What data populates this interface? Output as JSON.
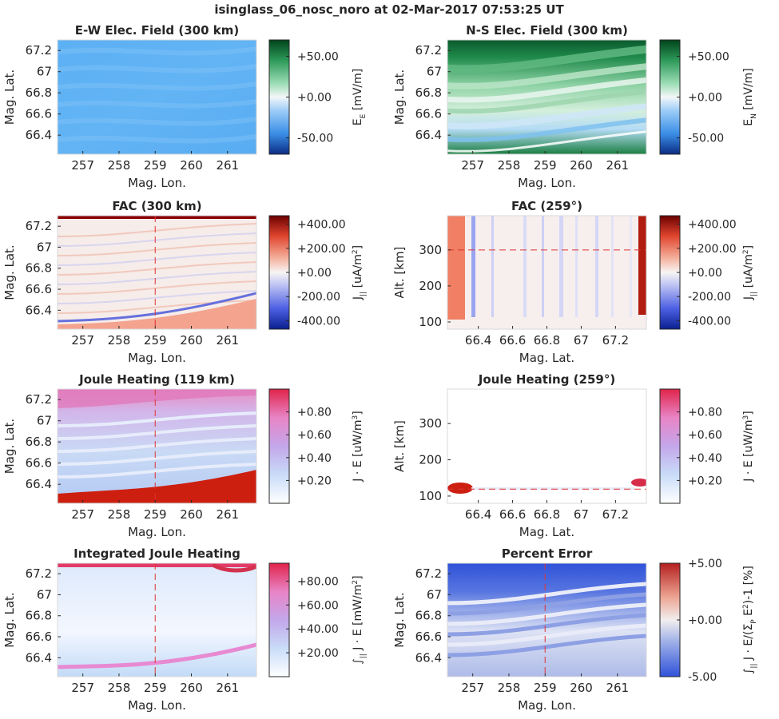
{
  "figure_title": "isinglass_06_nosc_noro at 02-Mar-2017 07:53:25 UT",
  "chart_data": [
    {
      "type": "heatmap",
      "title": "E-W Elec. Field (300 km)",
      "xlabel": "Mag. Lon.",
      "ylabel": "Mag. Lat.",
      "xlim": [
        256.3,
        261.8
      ],
      "ylim": [
        66.22,
        67.3
      ],
      "xticks": [
        "257",
        "258",
        "259",
        "260",
        "261"
      ],
      "xtick_values": [
        257,
        258,
        259,
        260,
        261
      ],
      "yticks": [
        "66.4",
        "66.6",
        "66.8",
        "67",
        "67.2"
      ],
      "ytick_values": [
        66.4,
        66.6,
        66.8,
        67,
        67.2
      ],
      "colorbar": {
        "label": "E_E [mV/m]",
        "label_main": "E",
        "label_sub": "E",
        "label_post": " [mV/m]",
        "ticks": [
          "+50.00",
          "+0.00",
          "-50.00"
        ],
        "tick_values": [
          50,
          0,
          -50
        ],
        "range": [
          -70,
          70
        ],
        "colormap": "blue-white-green"
      },
      "marker_line": null
    },
    {
      "type": "heatmap",
      "title": "N-S Elec. Field (300 km)",
      "xlabel": "Mag. Lon.",
      "ylabel": "Mag. Lat.",
      "xlim": [
        256.3,
        261.8
      ],
      "ylim": [
        66.22,
        67.3
      ],
      "xticks": [
        "257",
        "258",
        "259",
        "260",
        "261"
      ],
      "xtick_values": [
        257,
        258,
        259,
        260,
        261
      ],
      "yticks": [
        "66.4",
        "66.6",
        "66.8",
        "67",
        "67.2"
      ],
      "ytick_values": [
        66.4,
        66.6,
        66.8,
        67,
        67.2
      ],
      "colorbar": {
        "label": "E_N [mV/m]",
        "label_main": "E",
        "label_sub": "N",
        "label_post": " [mV/m]",
        "ticks": [
          "+50.00",
          "+0.00",
          "-50.00"
        ],
        "tick_values": [
          50,
          0,
          -50
        ],
        "range": [
          -70,
          70
        ],
        "colormap": "blue-white-green"
      },
      "marker_line": null
    },
    {
      "type": "heatmap",
      "title": "FAC (300 km)",
      "xlabel": "Mag. Lon.",
      "ylabel": "Mag. Lat.",
      "xlim": [
        256.3,
        261.8
      ],
      "ylim": [
        66.22,
        67.3
      ],
      "xticks": [
        "257",
        "258",
        "259",
        "260",
        "261"
      ],
      "xtick_values": [
        257,
        258,
        259,
        260,
        261
      ],
      "yticks": [
        "66.4",
        "66.6",
        "66.8",
        "67",
        "67.2"
      ],
      "ytick_values": [
        66.4,
        66.6,
        66.8,
        67,
        67.2
      ],
      "colorbar": {
        "label": "J_|| [uA/m^2]",
        "label_main": "J",
        "label_sub": "||",
        "label_post": " [uA/m",
        "label_sup": "2",
        "label_end": "]",
        "ticks": [
          "+400.00",
          "+200.00",
          "+0.00",
          "-200.00",
          "-400.00"
        ],
        "tick_values": [
          400,
          200,
          0,
          -200,
          -400
        ],
        "range": [
          -470,
          470
        ],
        "colormap": "blue-white-red"
      },
      "marker_line": {
        "orientation": "vertical",
        "value": 259,
        "color": "#dd3333"
      }
    },
    {
      "type": "heatmap",
      "title": "FAC (259°)",
      "xlabel": "Mag. Lat.",
      "ylabel": "Alt. [km]",
      "xlim": [
        66.22,
        67.38
      ],
      "ylim": [
        80,
        395
      ],
      "xticks": [
        "66.4",
        "66.6",
        "66.8",
        "67",
        "67.2"
      ],
      "xtick_values": [
        66.4,
        66.6,
        66.8,
        67,
        67.2
      ],
      "yticks": [
        "100",
        "200",
        "300"
      ],
      "ytick_values": [
        100,
        200,
        300
      ],
      "colorbar": {
        "label": "J_|| [uA/m^2]",
        "label_main": "J",
        "label_sub": "||",
        "label_post": " [uA/m",
        "label_sup": "2",
        "label_end": "]",
        "ticks": [
          "+400.00",
          "+200.00",
          "+0.00",
          "-200.00",
          "-400.00"
        ],
        "tick_values": [
          400,
          200,
          0,
          -200,
          -400
        ],
        "range": [
          -470,
          470
        ],
        "colormap": "blue-white-red"
      },
      "marker_line": {
        "orientation": "horizontal",
        "value": 300,
        "color": "#dd3333"
      }
    },
    {
      "type": "heatmap",
      "title": "Joule Heating (119 km)",
      "xlabel": "Mag. Lon.",
      "ylabel": "Mag. Lat.",
      "xlim": [
        256.3,
        261.8
      ],
      "ylim": [
        66.22,
        67.3
      ],
      "xticks": [
        "257",
        "258",
        "259",
        "260",
        "261"
      ],
      "xtick_values": [
        257,
        258,
        259,
        260,
        261
      ],
      "yticks": [
        "66.4",
        "66.6",
        "66.8",
        "67",
        "67.2"
      ],
      "ytick_values": [
        66.4,
        66.6,
        66.8,
        67,
        67.2
      ],
      "colorbar": {
        "label": "J · E [uW/m^3]",
        "label_main": "J · E [uW/m",
        "label_sup": "3",
        "label_end": "]",
        "ticks": [
          "+0.80",
          "+0.60",
          "+0.40",
          "+0.20"
        ],
        "tick_values": [
          0.8,
          0.6,
          0.4,
          0.2
        ],
        "range": [
          0,
          1.0
        ],
        "colormap": "white-purple-red"
      },
      "marker_line": {
        "orientation": "vertical",
        "value": 259,
        "color": "#dd3333"
      }
    },
    {
      "type": "heatmap",
      "title": "Joule Heating (259°)",
      "xlabel": "Mag. Lat.",
      "ylabel": "Alt. [km]",
      "xlim": [
        66.22,
        67.38
      ],
      "ylim": [
        80,
        395
      ],
      "xticks": [
        "66.4",
        "66.6",
        "66.8",
        "67",
        "67.2"
      ],
      "xtick_values": [
        66.4,
        66.6,
        66.8,
        67,
        67.2
      ],
      "yticks": [
        "100",
        "200",
        "300"
      ],
      "ytick_values": [
        100,
        200,
        300
      ],
      "colorbar": {
        "label": "J · E [uW/m^3]",
        "label_main": "J · E [uW/m",
        "label_sup": "3",
        "label_end": "]",
        "ticks": [
          "+0.80",
          "+0.60",
          "+0.40",
          "+0.20"
        ],
        "tick_values": [
          0.8,
          0.6,
          0.4,
          0.2
        ],
        "range": [
          0,
          1.0
        ],
        "colormap": "white-purple-red"
      },
      "marker_line": {
        "orientation": "horizontal",
        "value": 119,
        "color": "#dd3333"
      }
    },
    {
      "type": "heatmap",
      "title": "Integrated Joule Heating",
      "xlabel": "Mag. Lon.",
      "ylabel": "Mag. Lat.",
      "xlim": [
        256.3,
        261.8
      ],
      "ylim": [
        66.22,
        67.3
      ],
      "xticks": [
        "257",
        "258",
        "259",
        "260",
        "261"
      ],
      "xtick_values": [
        257,
        258,
        259,
        260,
        261
      ],
      "yticks": [
        "66.4",
        "66.6",
        "66.8",
        "67",
        "67.2"
      ],
      "ytick_values": [
        66.4,
        66.6,
        66.8,
        67,
        67.2
      ],
      "colorbar": {
        "label": "∫|| J · E [mW/m^2]",
        "label_main": "∫",
        "label_sub": "||",
        "label_post": " J · E [mW/m",
        "label_sup": "2",
        "label_end": "]",
        "ticks": [
          "+80.00",
          "+60.00",
          "+40.00",
          "+20.00"
        ],
        "tick_values": [
          80,
          60,
          40,
          20
        ],
        "range": [
          0,
          95
        ],
        "colormap": "white-purple-red"
      },
      "marker_line": {
        "orientation": "vertical",
        "value": 259,
        "color": "#dd3333"
      }
    },
    {
      "type": "heatmap",
      "title": "Percent Error",
      "xlabel": "Mag. Lon.",
      "ylabel": "Mag. Lat.",
      "xlim": [
        256.3,
        261.8
      ],
      "ylim": [
        66.22,
        67.3
      ],
      "xticks": [
        "257",
        "258",
        "259",
        "260",
        "261"
      ],
      "xtick_values": [
        257,
        258,
        259,
        260,
        261
      ],
      "yticks": [
        "66.4",
        "66.6",
        "66.8",
        "67",
        "67.2"
      ],
      "ytick_values": [
        66.4,
        66.6,
        66.8,
        67,
        67.2
      ],
      "colorbar": {
        "label": "∫|| J · E/(ΣP E^2)-1 [%]",
        "label_main": "∫",
        "label_sub": "||",
        "label_post": " J · E/(Σ",
        "label_sub2": "P",
        "label_mid": " E",
        "label_sup": "2",
        "label_end": ")-1 [%]",
        "ticks": [
          "+5.00",
          "+0.00",
          "-5.00"
        ],
        "tick_values": [
          5,
          0,
          -5
        ],
        "range": [
          -5,
          5
        ],
        "colormap": "blue-white-red"
      },
      "marker_line": {
        "orientation": "vertical",
        "value": 259,
        "color": "#dd3333"
      }
    }
  ]
}
